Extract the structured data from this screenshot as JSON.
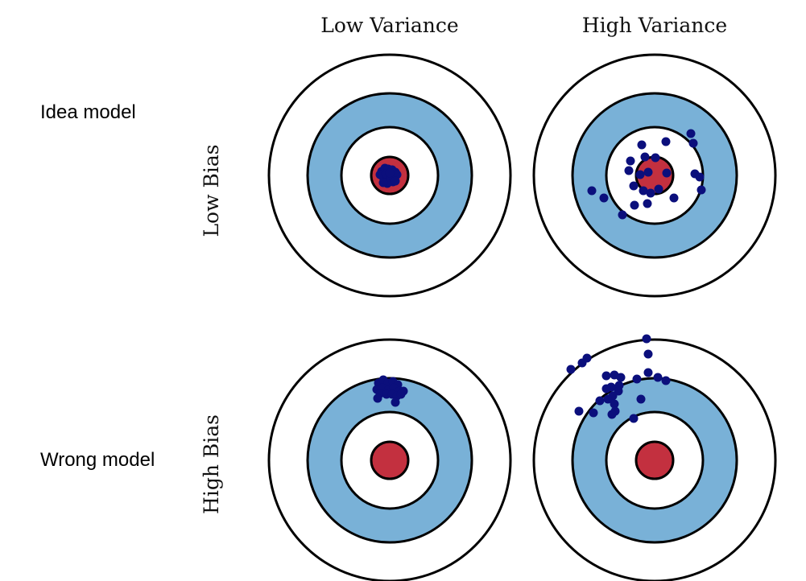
{
  "columns": [
    {
      "label": "Low Variance"
    },
    {
      "label": "High Variance"
    }
  ],
  "rows": [
    {
      "label": "Low Bias",
      "side_label": "Idea model"
    },
    {
      "label": "High Bias",
      "side_label": "Wrong model"
    }
  ],
  "colors": {
    "ring_outer": "#ffffff",
    "ring_blue": "#79b1d7",
    "ring_inner": "#ffffff",
    "bullseye": "#c3303f",
    "ring_stroke": "#000000",
    "point": "#0b0f7c"
  },
  "targets": [
    {
      "name": "low-bias-low-variance",
      "points": [
        [
          -10,
          -5
        ],
        [
          -6,
          -9
        ],
        [
          -2,
          -8
        ],
        [
          3,
          -7
        ],
        [
          7,
          -4
        ],
        [
          -9,
          1
        ],
        [
          -4,
          2
        ],
        [
          1,
          0
        ],
        [
          6,
          2
        ],
        [
          -7,
          6
        ],
        [
          -1,
          7
        ],
        [
          4,
          8
        ],
        [
          -12,
          -1
        ],
        [
          9,
          -1
        ],
        [
          -5,
          -2
        ],
        [
          2,
          4
        ],
        [
          -3,
          10
        ],
        [
          7,
          7
        ],
        [
          0,
          -3
        ],
        [
          -8,
          9
        ]
      ]
    },
    {
      "name": "high-bias-low-variance",
      "points": [
        [
          -14,
          -96
        ],
        [
          -8,
          -100
        ],
        [
          -2,
          -96
        ],
        [
          4,
          -98
        ],
        [
          10,
          -94
        ],
        [
          -16,
          -88
        ],
        [
          -9,
          -90
        ],
        [
          -2,
          -87
        ],
        [
          5,
          -90
        ],
        [
          12,
          -86
        ],
        [
          -12,
          -83
        ],
        [
          -4,
          -82
        ],
        [
          3,
          -82
        ],
        [
          9,
          -80
        ],
        [
          17,
          -86
        ],
        [
          -15,
          -77
        ],
        [
          7,
          -72
        ],
        [
          14,
          -82
        ]
      ]
    },
    {
      "name": "low-bias-high-variance",
      "points": [
        [
          -16,
          -38
        ],
        [
          14,
          -42
        ],
        [
          -12,
          -23
        ],
        [
          1,
          -22
        ],
        [
          45,
          -52
        ],
        [
          48,
          -40
        ],
        [
          -32,
          -6
        ],
        [
          -18,
          -1
        ],
        [
          -8,
          -4
        ],
        [
          -26,
          13
        ],
        [
          -14,
          19
        ],
        [
          -5,
          22
        ],
        [
          5,
          17
        ],
        [
          15,
          -3
        ],
        [
          -78,
          19
        ],
        [
          -63,
          28
        ],
        [
          24,
          28
        ],
        [
          -25,
          37
        ],
        [
          -9,
          35
        ],
        [
          50,
          -2
        ],
        [
          58,
          18
        ],
        [
          56,
          2
        ],
        [
          -40,
          49
        ],
        [
          -30,
          -18
        ]
      ]
    },
    {
      "name": "high-bias-high-variance",
      "points": [
        [
          -10,
          -151
        ],
        [
          -8,
          -132
        ],
        [
          -90,
          -121
        ],
        [
          -84,
          -127
        ],
        [
          -104,
          -113
        ],
        [
          -60,
          -105
        ],
        [
          -50,
          -106
        ],
        [
          -42,
          -103
        ],
        [
          -22,
          -101
        ],
        [
          -8,
          -109
        ],
        [
          -44,
          -93
        ],
        [
          -54,
          -91
        ],
        [
          -60,
          -89
        ],
        [
          -45,
          -86
        ],
        [
          -52,
          -80
        ],
        [
          -68,
          -74
        ],
        [
          -58,
          -76
        ],
        [
          -17,
          -76
        ],
        [
          -50,
          -70
        ],
        [
          -76,
          -59
        ],
        [
          -94,
          -61
        ],
        [
          -49,
          -61
        ],
        [
          -53,
          -57
        ],
        [
          -26,
          -52
        ],
        [
          4,
          -103
        ],
        [
          14,
          -99
        ]
      ]
    }
  ]
}
